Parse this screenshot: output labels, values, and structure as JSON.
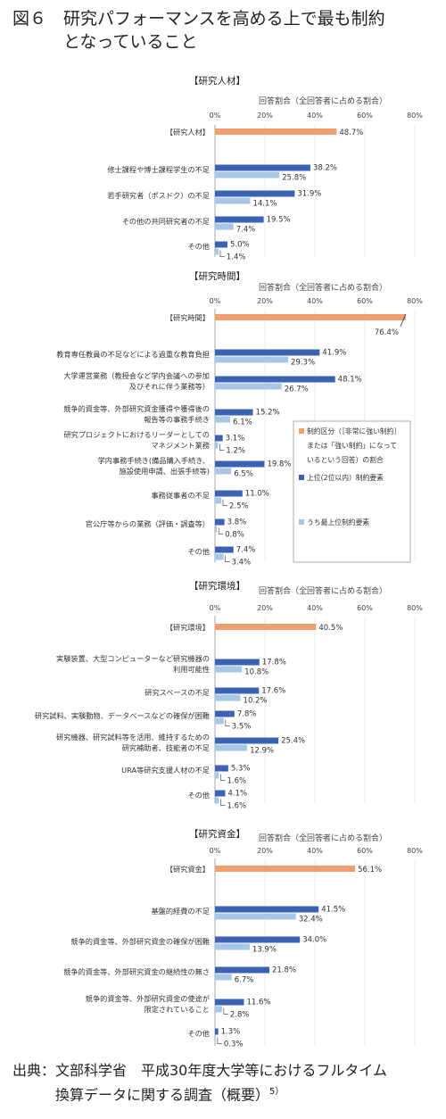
{
  "figure": {
    "title": "図６　研究パフォーマンスを高める上で最も制約\n　　　となっていること",
    "source": "出典：文部科学省　平成30年度大学等におけるフルタイム\n　　　換算データに関する調査（概要）",
    "source_ref": "5）"
  },
  "colors": {
    "category": "#f0a070",
    "top3": "#3c62b4",
    "top1": "#a8c6e6"
  },
  "legend": {
    "category": "制約区分（［非常に強い制約］\nまたは「強い制約」になって\nいるという回答）の割合",
    "top3": "上位(2位以内）制約要素",
    "top1": "うち最上位制約要素"
  },
  "chart_data": [
    {
      "type": "bar",
      "title": "【研究人材】",
      "xlabel": "回答割合（全回答者に占める割合）",
      "xticks": [
        "0%",
        "20%",
        "40%",
        "60%",
        "80%"
      ],
      "xlim": [
        0,
        80
      ],
      "categories": [
        "【研究人材】",
        "修士課程や博士課程学生の不足",
        "若手研究者（ポスドク）の不足",
        "その他の共同研究者の不足",
        "その他"
      ],
      "series": [
        {
          "name": "制約区分（［非常に強い制約］または「強い制約」になっているという回答）の割合",
          "values": [
            48.7,
            null,
            null,
            null,
            null
          ]
        },
        {
          "name": "上位(2位以内）制約要素",
          "values": [
            null,
            38.2,
            31.9,
            19.5,
            5.0
          ]
        },
        {
          "name": "うち最上位制約要素",
          "values": [
            null,
            25.8,
            14.1,
            7.4,
            1.4
          ]
        }
      ],
      "labels": [
        [
          "48.7%",
          null,
          null,
          null,
          null
        ],
        [
          null,
          "38.2%",
          "31.9%",
          "19.5%",
          "5.0%"
        ],
        [
          null,
          "25.8%",
          "14.1%",
          "7.4%",
          "1.4%"
        ]
      ]
    },
    {
      "type": "bar",
      "title": "【研究時間】",
      "xlabel": "回答割合（全回答者に占める割合）",
      "xticks": [
        "0%",
        "20%",
        "40%",
        "60%",
        "80%"
      ],
      "xlim": [
        0,
        80
      ],
      "categories": [
        "【研究時間】",
        "教育専任教員の不足などによる過重な教育負担",
        "大学運営業務（教授会など学内会議への参加\n及びそれに伴う業務等）",
        "競争的資金等、外部研究資金獲得や獲得後の\n報告等の事務手続き",
        "研究プロジェクトにおけるリーダーとしての\nマネジメント業務",
        "学内事務手続き(備品購入手続き、\n施設使用申請、出張手続等)",
        "事務従事者の不足",
        "官公庁等からの業務（評価・調査等）",
        "その他"
      ],
      "series": [
        {
          "name": "制約区分（［非常に強い制約］または「強い制約」になっているという回答）の割合",
          "values": [
            76.4,
            null,
            null,
            null,
            null,
            null,
            null,
            null,
            null
          ]
        },
        {
          "name": "上位(2位以内）制約要素",
          "values": [
            null,
            41.9,
            48.1,
            15.2,
            3.1,
            19.8,
            11.0,
            3.8,
            7.4
          ]
        },
        {
          "name": "うち最上位制約要素",
          "values": [
            null,
            29.3,
            26.7,
            6.1,
            1.2,
            6.5,
            2.5,
            0.8,
            3.4
          ]
        }
      ],
      "labels": [
        [
          "76.4%",
          null,
          null,
          null,
          null,
          null,
          null,
          null,
          null
        ],
        [
          null,
          "41.9%",
          "48.1%",
          "15.2%",
          "3.1%",
          "19.8%",
          "11.0%",
          "3.8%",
          "7.4%"
        ],
        [
          null,
          "29.3%",
          "26.7%",
          "6.1%",
          "1.2%",
          "6.5%",
          "2.5%",
          "0.8%",
          "3.4%"
        ]
      ]
    },
    {
      "type": "bar",
      "title": "【研究環境】",
      "xlabel": "回答割合（全回答者に占める割合）",
      "xticks": [
        "0%",
        "20%",
        "40%",
        "60%",
        "80%"
      ],
      "xlim": [
        0,
        80
      ],
      "categories": [
        "【研究環境】",
        "実験装置、大型コンピューターなど研究機器の\n利用可能性",
        "研究スペースの不足",
        "研究試料、実験動物、データベースなどの確保が困難",
        "研究機器、研究試料等を活用、維持するための\n研究補助者、技能者の不足",
        "URA等研究支援人材の不足",
        "その他"
      ],
      "series": [
        {
          "name": "制約区分（［非常に強い制約］または「強い制約」になっているという回答）の割合",
          "values": [
            40.5,
            null,
            null,
            null,
            null,
            null,
            null
          ]
        },
        {
          "name": "上位(2位以内）制約要素",
          "values": [
            null,
            17.8,
            17.6,
            7.8,
            25.4,
            5.3,
            4.1
          ]
        },
        {
          "name": "うち最上位制約要素",
          "values": [
            null,
            10.8,
            10.2,
            3.5,
            12.9,
            1.6,
            1.6
          ]
        }
      ],
      "labels": [
        [
          "40.5%",
          null,
          null,
          null,
          null,
          null,
          null
        ],
        [
          null,
          "17.8%",
          "17.6%",
          "7.8%",
          "25.4%",
          "5.3%",
          "4.1%"
        ],
        [
          null,
          "10.8%",
          "10.2%",
          "3.5%",
          "12.9%",
          "1.6%",
          "1.6%"
        ]
      ]
    },
    {
      "type": "bar",
      "title": "【研究資金】",
      "xlabel": "回答割合（全回答者に占める割合）",
      "xticks": [
        "0%",
        "20%",
        "40%",
        "60%",
        "80%"
      ],
      "xlim": [
        0,
        80
      ],
      "categories": [
        "【研究資金】",
        "基盤的経費の不足",
        "競争的資金等、外部研究資金の確保が困難",
        "競争的資金等、外部研究資金の継続性の無さ",
        "競争的資金等、外部研究資金の使途が\n限定されていること",
        "その他"
      ],
      "series": [
        {
          "name": "制約区分（［非常に強い制約］または「強い制約」になっているという回答）の割合",
          "values": [
            56.1,
            null,
            null,
            null,
            null,
            null
          ]
        },
        {
          "name": "上位(2位以内）制約要素",
          "values": [
            null,
            41.5,
            34.0,
            21.8,
            11.6,
            1.3
          ]
        },
        {
          "name": "うち最上位制約要素",
          "values": [
            null,
            32.4,
            13.9,
            6.7,
            2.8,
            0.3
          ]
        }
      ],
      "labels": [
        [
          "56.1%",
          null,
          null,
          null,
          null,
          null
        ],
        [
          null,
          "41.5%",
          "34.0%",
          "21.8%",
          "11.6%",
          "1.3%"
        ],
        [
          null,
          "32.4%",
          "13.9%",
          "6.7%",
          "2.8%",
          "0.3%"
        ]
      ]
    }
  ]
}
